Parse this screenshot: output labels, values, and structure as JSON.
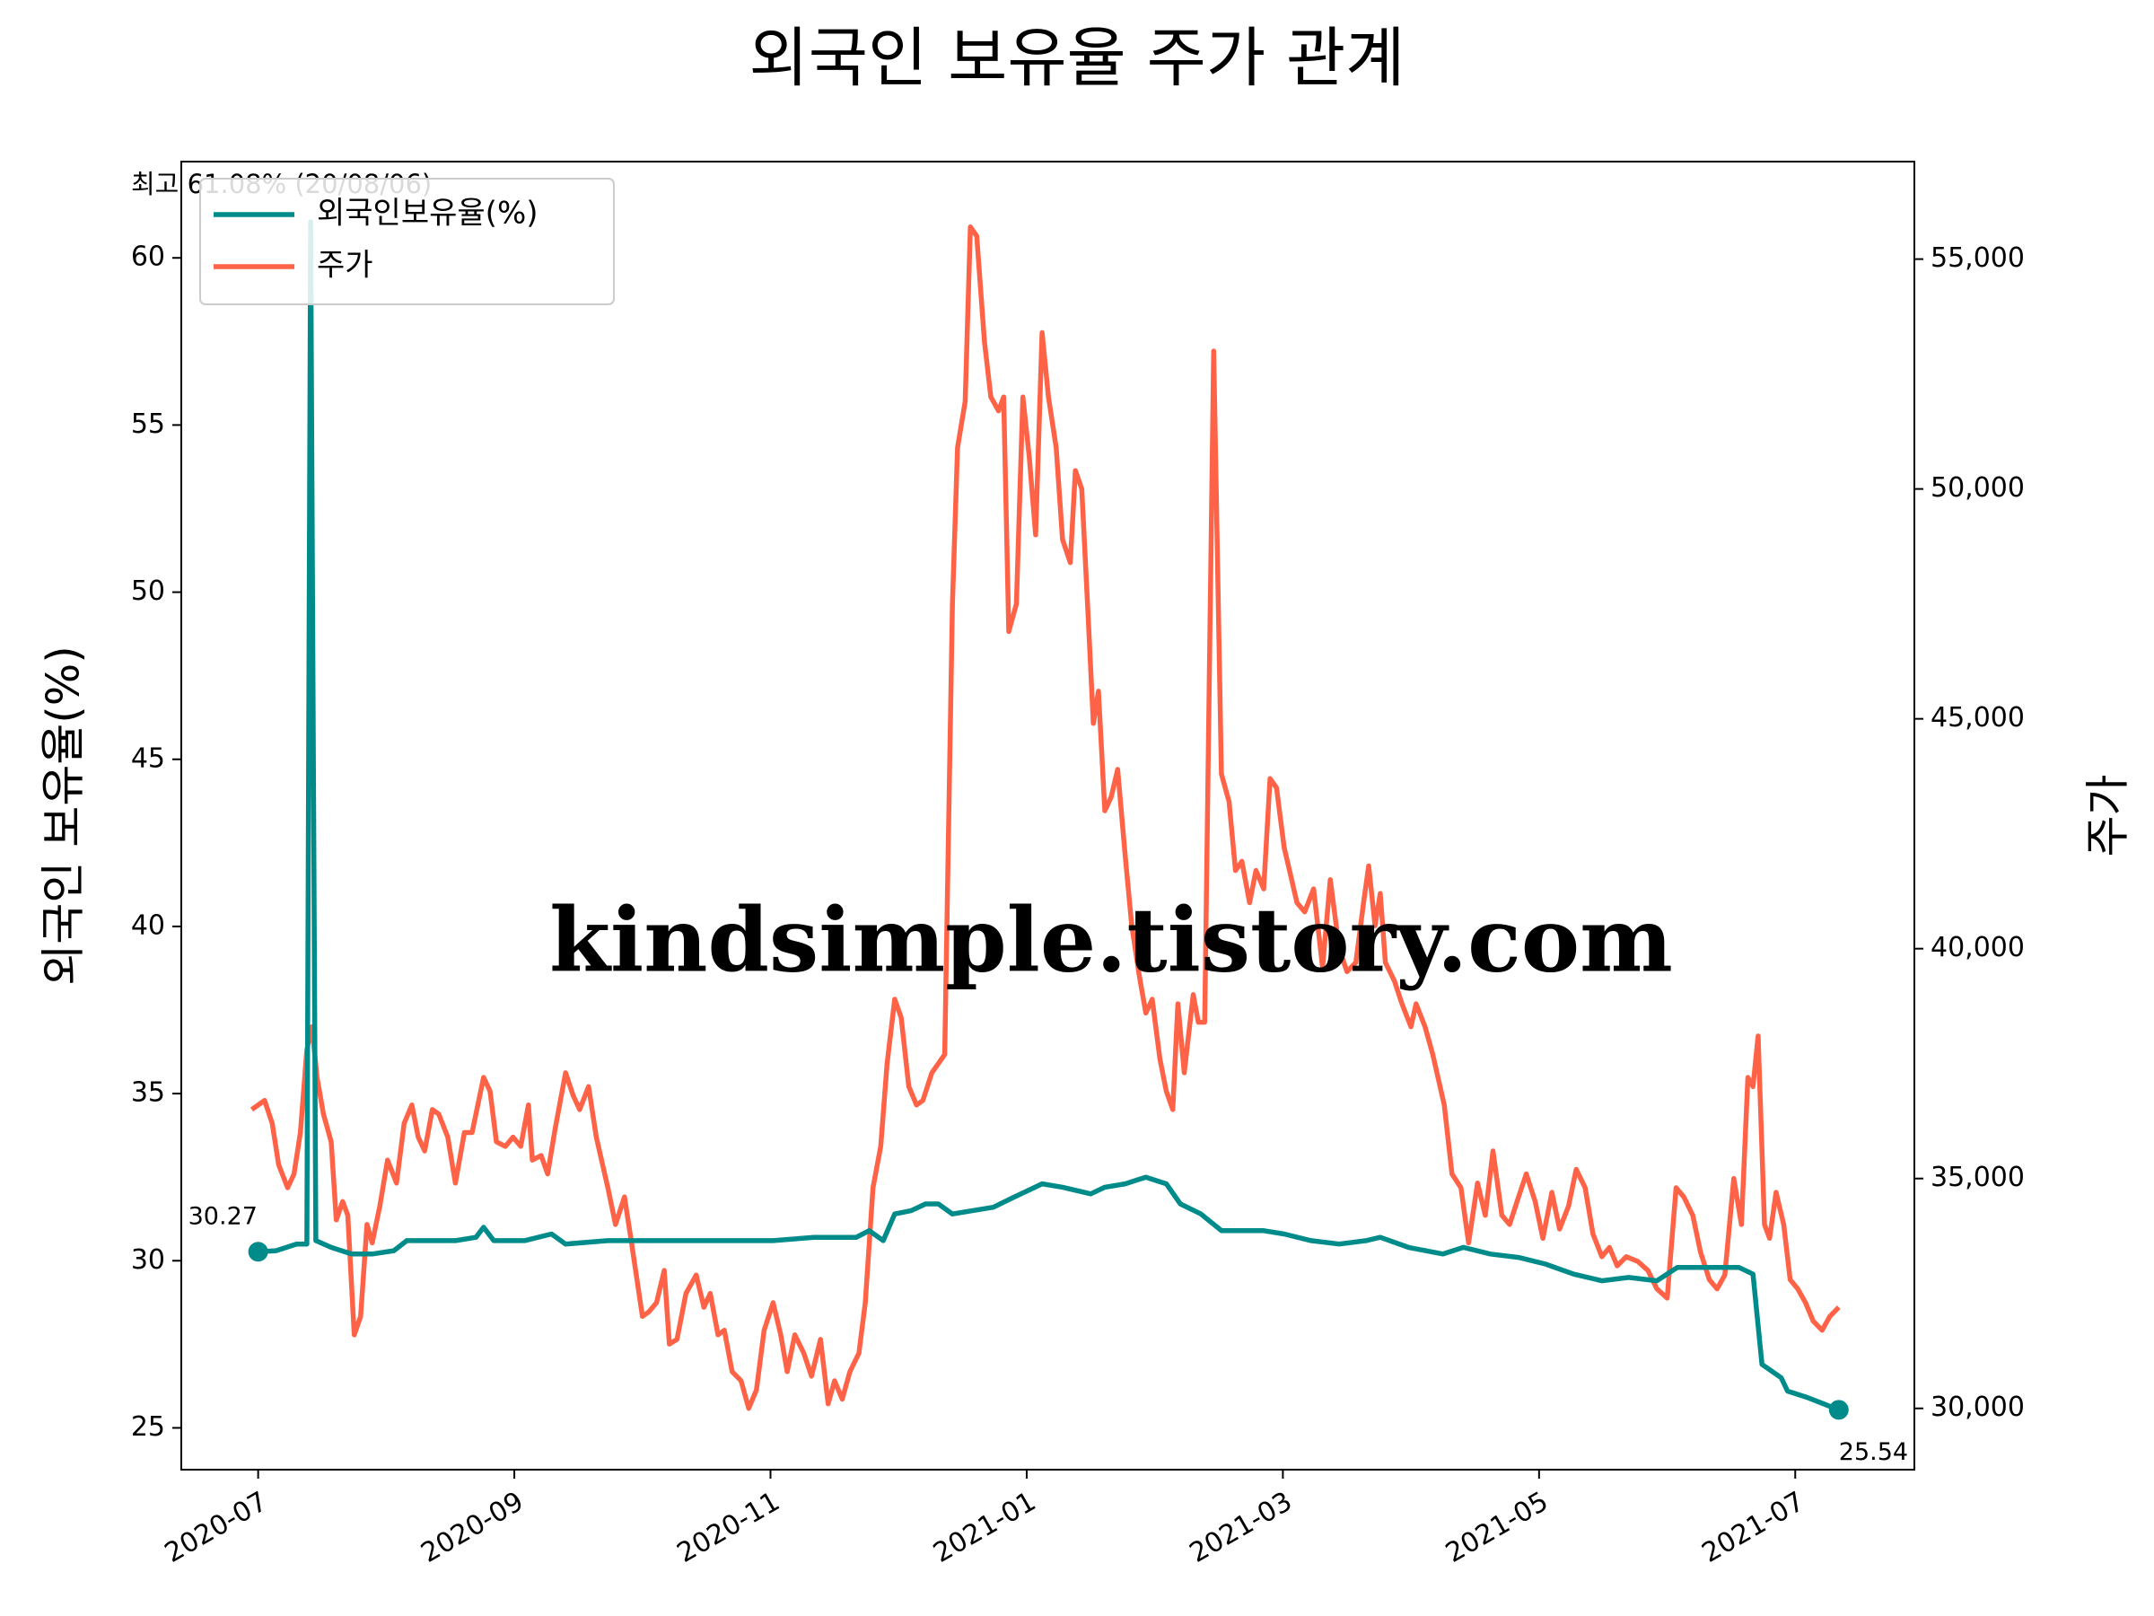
{
  "chart_data": {
    "type": "line",
    "title": "외국인 보유율 주가 관계",
    "ylabel": "외국인 보유율(%)",
    "y2label": "주가",
    "annotation": "최고 61.08% (20/08/06)",
    "watermark": "kindsimple.tistory.com",
    "legend": "upper left",
    "xlim": [
      -0.6,
      12.93
    ],
    "xticks": [
      {
        "value": 0,
        "label": "2020-07"
      },
      {
        "value": 2,
        "label": "2020-09"
      },
      {
        "value": 4,
        "label": "2020-11"
      },
      {
        "value": 6,
        "label": "2021-01"
      },
      {
        "value": 8,
        "label": "2021-03"
      },
      {
        "value": 10,
        "label": "2021-05"
      },
      {
        "value": 12,
        "label": "2021-07"
      }
    ],
    "ylim": [
      23.75,
      62.88
    ],
    "yticks": [
      25,
      30,
      35,
      40,
      45,
      50,
      55,
      60
    ],
    "y2lim": [
      28667,
      57121
    ],
    "y2ticks": [
      {
        "value": 30000,
        "label": "30,000"
      },
      {
        "value": 35000,
        "label": "35,000"
      },
      {
        "value": 40000,
        "label": "40,000"
      },
      {
        "value": 45000,
        "label": "45,000"
      },
      {
        "value": 50000,
        "label": "50,000"
      },
      {
        "value": 55000,
        "label": "55,000"
      }
    ],
    "series": [
      {
        "name": "외국인보유율(%)",
        "color": "#008b8b",
        "axis": "y",
        "x": [
          0,
          0.14,
          0.3,
          0.38,
          0.41,
          0.45,
          0.57,
          0.73,
          0.89,
          1.06,
          1.16,
          1.33,
          1.54,
          1.7,
          1.76,
          1.84,
          2.08,
          2.29,
          2.4,
          2.73,
          3.05,
          3.37,
          3.7,
          4.02,
          4.34,
          4.67,
          4.77,
          4.88,
          4.97,
          5.1,
          5.21,
          5.31,
          5.42,
          5.58,
          5.74,
          5.9,
          6.01,
          6.12,
          6.28,
          6.5,
          6.61,
          6.77,
          6.93,
          7.09,
          7.2,
          7.36,
          7.52,
          7.68,
          7.85,
          8.01,
          8.22,
          8.44,
          8.65,
          8.76,
          8.98,
          9.25,
          9.41,
          9.62,
          9.84,
          10.05,
          10.27,
          10.49,
          10.7,
          10.92,
          11.08,
          11.35,
          11.56,
          11.67,
          11.74,
          11.89,
          11.94,
          12.1,
          12.34
        ],
        "values": [
          30.27,
          30.3,
          30.5,
          30.5,
          61.08,
          30.6,
          30.4,
          30.2,
          30.2,
          30.3,
          30.6,
          30.6,
          30.6,
          30.7,
          31.0,
          30.6,
          30.6,
          30.8,
          30.5,
          30.6,
          30.6,
          30.6,
          30.6,
          30.6,
          30.7,
          30.7,
          30.9,
          30.6,
          31.4,
          31.5,
          31.7,
          31.7,
          31.4,
          31.5,
          31.6,
          31.9,
          32.1,
          32.3,
          32.2,
          32.0,
          32.2,
          32.3,
          32.5,
          32.3,
          31.7,
          31.4,
          30.9,
          30.9,
          30.9,
          30.8,
          30.6,
          30.5,
          30.6,
          30.7,
          30.4,
          30.2,
          30.4,
          30.2,
          30.1,
          29.9,
          29.6,
          29.4,
          29.5,
          29.4,
          29.8,
          29.8,
          29.8,
          29.6,
          26.9,
          26.5,
          26.1,
          25.9,
          25.54
        ]
      },
      {
        "name": "주가",
        "color": "#ff6347",
        "axis": "y2",
        "x": [
          -0.05,
          0.05,
          0.11,
          0.16,
          0.23,
          0.28,
          0.33,
          0.38,
          0.42,
          0.46,
          0.51,
          0.57,
          0.61,
          0.66,
          0.7,
          0.75,
          0.8,
          0.85,
          0.89,
          0.95,
          1.01,
          1.08,
          1.14,
          1.2,
          1.25,
          1.3,
          1.36,
          1.41,
          1.48,
          1.54,
          1.61,
          1.67,
          1.76,
          1.81,
          1.86,
          1.93,
          1.99,
          2.05,
          2.11,
          2.14,
          2.21,
          2.26,
          2.32,
          2.4,
          2.46,
          2.51,
          2.58,
          2.64,
          2.73,
          2.79,
          2.86,
          2.91,
          3.0,
          3.05,
          3.11,
          3.17,
          3.21,
          3.27,
          3.34,
          3.42,
          3.48,
          3.53,
          3.59,
          3.64,
          3.7,
          3.77,
          3.83,
          3.89,
          3.95,
          4.02,
          4.08,
          4.13,
          4.19,
          4.26,
          4.32,
          4.39,
          4.45,
          4.5,
          4.56,
          4.62,
          4.69,
          4.74,
          4.8,
          4.86,
          4.91,
          4.97,
          5.02,
          5.08,
          5.14,
          5.19,
          5.26,
          5.31,
          5.36,
          5.42,
          5.46,
          5.52,
          5.56,
          5.61,
          5.67,
          5.72,
          5.78,
          5.82,
          5.86,
          5.92,
          5.97,
          6.02,
          6.07,
          6.12,
          6.17,
          6.23,
          6.28,
          6.34,
          6.38,
          6.43,
          6.48,
          6.52,
          6.56,
          6.61,
          6.66,
          6.71,
          6.77,
          6.82,
          6.88,
          6.93,
          6.98,
          7.04,
          7.09,
          7.14,
          7.18,
          7.23,
          7.3,
          7.34,
          7.39,
          7.46,
          7.52,
          7.58,
          7.63,
          7.68,
          7.74,
          7.79,
          7.85,
          7.9,
          7.95,
          8.01,
          8.06,
          8.11,
          8.17,
          8.24,
          8.31,
          8.37,
          8.44,
          8.5,
          8.57,
          8.63,
          8.67,
          8.72,
          8.76,
          8.8,
          8.87,
          8.93,
          9.0,
          9.04,
          9.11,
          9.17,
          9.26,
          9.32,
          9.39,
          9.45,
          9.52,
          9.58,
          9.64,
          9.71,
          9.77,
          9.84,
          9.9,
          9.97,
          10.03,
          10.1,
          10.16,
          10.23,
          10.29,
          10.36,
          10.42,
          10.49,
          10.55,
          10.61,
          10.68,
          10.77,
          10.85,
          10.92,
          11.0,
          11.07,
          11.13,
          11.2,
          11.26,
          11.33,
          11.39,
          11.45,
          11.52,
          11.58,
          11.63,
          11.67,
          11.71,
          11.76,
          11.8,
          11.85,
          11.91,
          11.96,
          12.02,
          12.08,
          12.14,
          12.21,
          12.27,
          12.34
        ],
        "values": [
          36500,
          36700,
          36200,
          35300,
          34800,
          35100,
          36000,
          37800,
          38300,
          37200,
          36400,
          35800,
          34100,
          34500,
          34200,
          31600,
          32000,
          34000,
          33600,
          34400,
          35400,
          34900,
          36200,
          36600,
          35900,
          35600,
          36500,
          36400,
          35900,
          34900,
          36000,
          36000,
          37200,
          36900,
          35800,
          35700,
          35900,
          35700,
          36600,
          35400,
          35500,
          35100,
          36100,
          37300,
          36800,
          36500,
          37000,
          35900,
          34800,
          34000,
          34600,
          33700,
          32000,
          32100,
          32300,
          33000,
          31400,
          31500,
          32500,
          32900,
          32200,
          32500,
          31600,
          31700,
          30800,
          30600,
          30000,
          30400,
          31700,
          32300,
          31600,
          30800,
          31600,
          31200,
          30700,
          31500,
          30100,
          30600,
          30200,
          30800,
          31200,
          32300,
          34800,
          35700,
          37500,
          38900,
          38500,
          37000,
          36600,
          36700,
          37300,
          37500,
          37700,
          47500,
          50900,
          51900,
          55700,
          55500,
          53200,
          52000,
          51700,
          52000,
          46900,
          47500,
          52000,
          50700,
          49000,
          53400,
          52000,
          50900,
          48900,
          48400,
          50400,
          50000,
          47200,
          44900,
          45600,
          43000,
          43300,
          43900,
          42000,
          40500,
          39400,
          38600,
          38900,
          37600,
          36900,
          36500,
          38800,
          37300,
          39000,
          38400,
          38400,
          53000,
          43800,
          43200,
          41700,
          41900,
          41000,
          41700,
          41300,
          43700,
          43500,
          42200,
          41600,
          41000,
          40800,
          41300,
          39600,
          41500,
          40000,
          39500,
          39700,
          41000,
          41800,
          40500,
          41200,
          39700,
          39300,
          38800,
          38300,
          38800,
          38300,
          37700,
          36600,
          35100,
          34800,
          33600,
          34900,
          34200,
          35600,
          34200,
          34000,
          34600,
          35100,
          34500,
          33700,
          34700,
          33900,
          34400,
          35200,
          34800,
          33800,
          33300,
          33500,
          33100,
          33300,
          33200,
          33000,
          32600,
          32400,
          34800,
          34600,
          34200,
          33400,
          32800,
          32600,
          32900,
          35000,
          34000,
          37200,
          37000,
          38100,
          34000,
          33700,
          34700,
          34000,
          32800,
          32600,
          32300,
          31900,
          31700,
          32000,
          32200
        ]
      }
    ]
  }
}
